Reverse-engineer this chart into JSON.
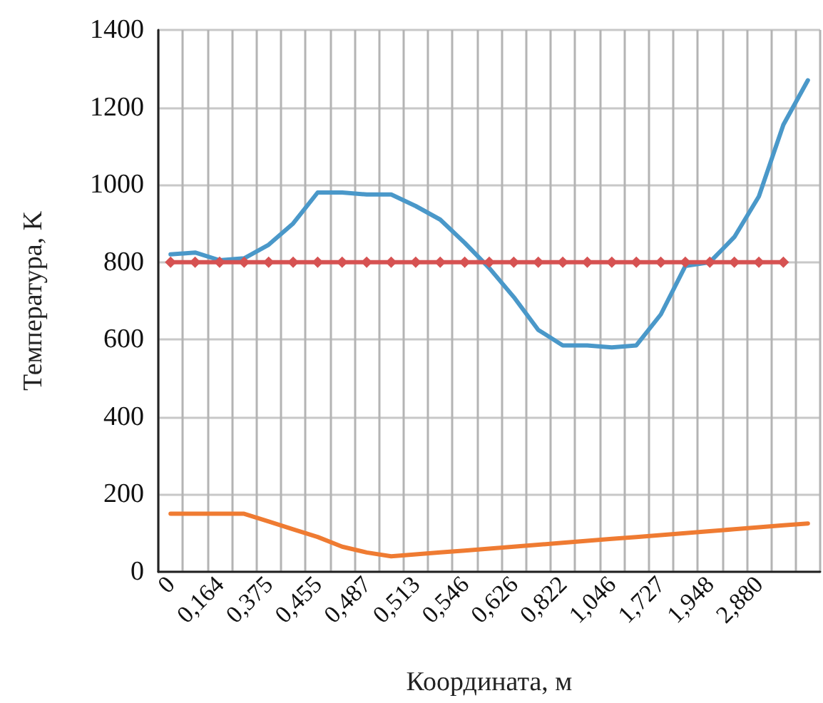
{
  "chart_data": {
    "type": "line",
    "xlabel": "Координата, м",
    "ylabel": "Температура, K",
    "categories": [
      "0",
      null,
      "0,164",
      null,
      "0,375",
      null,
      "0,455",
      null,
      "0,487",
      null,
      "0,513",
      null,
      "0,546",
      null,
      "0,626",
      null,
      "0,822",
      null,
      "1,046",
      null,
      "1,727",
      null,
      "1,948",
      null,
      "2,880",
      null,
      null
    ],
    "ylim": [
      0,
      1400
    ],
    "yticks": [
      0,
      200,
      400,
      600,
      800,
      1000,
      1200,
      1400
    ],
    "grid": true,
    "series": [
      {
        "color": "#4a98c9",
        "marker": "none",
        "values": [
          820,
          825,
          805,
          810,
          845,
          900,
          980,
          980,
          975,
          975,
          945,
          910,
          850,
          785,
          710,
          625,
          585,
          585,
          580,
          585,
          665,
          790,
          800,
          865,
          970,
          1155,
          1270
        ]
      },
      {
        "color": "#d65252",
        "marker": "diamond",
        "values": [
          800,
          800,
          800,
          800,
          800,
          800,
          800,
          800,
          800,
          800,
          800,
          800,
          800,
          800,
          800,
          800,
          800,
          800,
          800,
          800,
          800,
          800,
          800,
          800,
          800,
          800,
          null
        ]
      },
      {
        "color": "#ef7b32",
        "marker": "none",
        "values": [
          150,
          150,
          150,
          150,
          130,
          110,
          90,
          65,
          50,
          40,
          45,
          50,
          55,
          60,
          65,
          70,
          75,
          80,
          85,
          90,
          95,
          100,
          105,
          110,
          115,
          120,
          125
        ]
      }
    ]
  }
}
